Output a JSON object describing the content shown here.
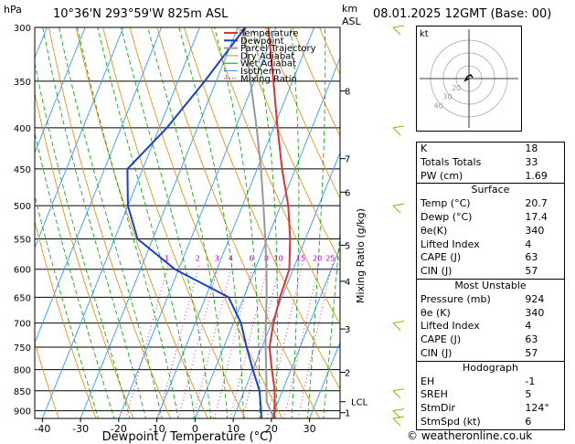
{
  "header": {
    "hpa_label": "hPa",
    "location": "10°36'N 293°59'W 825m ASL",
    "km_label": "km",
    "asl_label": "ASL",
    "datetime": "08.01.2025 12GMT (Base: 00)",
    "copyright": "© weatheronline.co.uk"
  },
  "colors": {
    "temperature": "#dd3333",
    "dewpoint": "#1a3fcf",
    "parcel": "#999999",
    "dry_adiabat": "#e08a00",
    "wet_adiabat": "#00a000",
    "isotherm": "#3399ff",
    "mixing_ratio": "#cc00cc",
    "wind": "#a0b000"
  },
  "chart_data": {
    "type": "line",
    "xlabel": "Dewpoint / Temperature (°C)",
    "ylabel_right": "Mixing Ratio (g/kg)",
    "xlim": [
      -42,
      38
    ],
    "ylim": [
      920,
      300
    ],
    "y_scale": "log",
    "x_ticks": [
      -40,
      -30,
      -20,
      -10,
      0,
      10,
      20,
      30
    ],
    "y_ticks": [
      300,
      350,
      400,
      450,
      500,
      550,
      600,
      650,
      700,
      750,
      800,
      850,
      900
    ],
    "legend": [
      "Temperature",
      "Dewpoint",
      "Parcel Trajectory",
      "Dry Adiabat",
      "Wet Adiabat",
      "Isotherm",
      "Mixing Ratio"
    ],
    "legend_position": "top-left",
    "km_ticks": [
      {
        "label": "8",
        "p": 360
      },
      {
        "label": "7",
        "p": 437
      },
      {
        "label": "6",
        "p": 481
      },
      {
        "label": "5",
        "p": 560
      },
      {
        "label": "4",
        "p": 621
      },
      {
        "label": "3",
        "p": 712
      },
      {
        "label": "2",
        "p": 806
      },
      {
        "label": "LCL",
        "p": 877
      },
      {
        "label": "1",
        "p": 905
      }
    ],
    "mixing_ratio_labels": [
      "1",
      "2",
      "3",
      "4",
      "6",
      "8",
      "10",
      "15",
      "20",
      "25"
    ],
    "temperature": [
      {
        "p": 920,
        "t": 20.7
      },
      {
        "p": 900,
        "t": 20.0
      },
      {
        "p": 850,
        "t": 18.0
      },
      {
        "p": 800,
        "t": 15.0
      },
      {
        "p": 750,
        "t": 12.0
      },
      {
        "p": 700,
        "t": 10.5
      },
      {
        "p": 650,
        "t": 9.5
      },
      {
        "p": 600,
        "t": 9.0
      },
      {
        "p": 550,
        "t": 6.0
      },
      {
        "p": 500,
        "t": 2.0
      },
      {
        "p": 450,
        "t": -3.5
      },
      {
        "p": 400,
        "t": -9.0
      },
      {
        "p": 350,
        "t": -15.0
      },
      {
        "p": 300,
        "t": -22.0
      }
    ],
    "dewpoint": [
      {
        "p": 920,
        "t": 17.4
      },
      {
        "p": 900,
        "t": 16.5
      },
      {
        "p": 850,
        "t": 14.0
      },
      {
        "p": 800,
        "t": 10.0
      },
      {
        "p": 750,
        "t": 6.0
      },
      {
        "p": 700,
        "t": 2.0
      },
      {
        "p": 650,
        "t": -4.0
      },
      {
        "p": 600,
        "t": -21.0
      },
      {
        "p": 550,
        "t": -34.0
      },
      {
        "p": 500,
        "t": -40.0
      },
      {
        "p": 450,
        "t": -44.0
      },
      {
        "p": 400,
        "t": -38.0
      },
      {
        "p": 350,
        "t": -33.0
      },
      {
        "p": 300,
        "t": -28.0
      }
    ],
    "parcel": [
      {
        "p": 920,
        "t": 20.7
      },
      {
        "p": 877,
        "t": 17.0
      },
      {
        "p": 850,
        "t": 15.8
      },
      {
        "p": 800,
        "t": 13.5
      },
      {
        "p": 750,
        "t": 11.0
      },
      {
        "p": 700,
        "t": 8.5
      },
      {
        "p": 650,
        "t": 6.0
      },
      {
        "p": 600,
        "t": 3.0
      },
      {
        "p": 550,
        "t": -0.5
      },
      {
        "p": 500,
        "t": -4.5
      },
      {
        "p": 450,
        "t": -9.0
      },
      {
        "p": 400,
        "t": -14.5
      },
      {
        "p": 350,
        "t": -21.0
      },
      {
        "p": 300,
        "t": -28.5
      }
    ],
    "hodograph": {
      "label": "kt",
      "ring_labels": [
        "20",
        "30",
        "40"
      ]
    }
  },
  "stats": {
    "rows1": [
      {
        "label": "K",
        "value": "18"
      },
      {
        "label": "Totals Totals",
        "value": "33"
      },
      {
        "label": "PW (cm)",
        "value": "1.69"
      }
    ],
    "surface": {
      "title": "Surface",
      "rows": [
        {
          "label": "Temp (°C)",
          "value": "20.7"
        },
        {
          "label": "Dewp (°C)",
          "value": "17.4"
        },
        {
          "label": "θe(K)",
          "value": "340"
        },
        {
          "label": "Lifted Index",
          "value": "4"
        },
        {
          "label": "CAPE (J)",
          "value": "63"
        },
        {
          "label": "CIN (J)",
          "value": "57"
        }
      ]
    },
    "most_unstable": {
      "title": "Most Unstable",
      "rows": [
        {
          "label": "Pressure (mb)",
          "value": "924"
        },
        {
          "label": "θe (K)",
          "value": "340"
        },
        {
          "label": "Lifted Index",
          "value": "4"
        },
        {
          "label": "CAPE (J)",
          "value": "63"
        },
        {
          "label": "CIN (J)",
          "value": "57"
        }
      ]
    },
    "hodograph_stats": {
      "title": "Hodograph",
      "rows": [
        {
          "label": "EH",
          "value": "-1"
        },
        {
          "label": "SREH",
          "value": "5"
        },
        {
          "label": "StmDir",
          "value": "124°"
        },
        {
          "label": "StmSpd (kt)",
          "value": "6"
        }
      ]
    }
  }
}
